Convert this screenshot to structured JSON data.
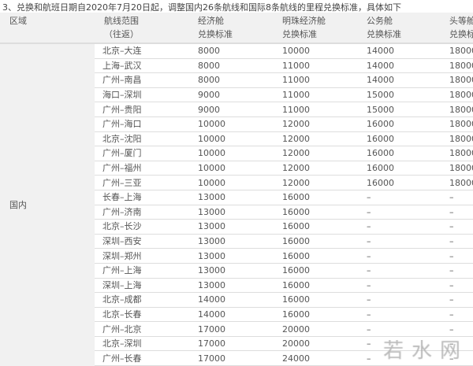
{
  "intro": "3、兑换和航班日期自2020年7月20日起，调整国内26条航线和国际8条航线的里程兑换标准，具体如下",
  "headers": [
    [
      "区域",
      ""
    ],
    [
      "航线范围",
      "（往返）"
    ],
    [
      "经济舱",
      "兑换标准"
    ],
    [
      "明珠经济舱",
      "兑换标准"
    ],
    [
      "公务舱",
      "兑换标准"
    ],
    [
      "头等舱",
      "兑换标准"
    ]
  ],
  "region": "国内",
  "rows": [
    [
      "北京–大连",
      "8000",
      "10000",
      "14000",
      "18000"
    ],
    [
      "上海–武汉",
      "8000",
      "11000",
      "14000",
      "18000"
    ],
    [
      "广州–南昌",
      "8000",
      "11000",
      "14000",
      "18000"
    ],
    [
      "海口–深圳",
      "9000",
      "11000",
      "15000",
      "18000"
    ],
    [
      "广州–贵阳",
      "9000",
      "11000",
      "15000",
      "18000"
    ],
    [
      "广州–海口",
      "10000",
      "12000",
      "16000",
      "18000"
    ],
    [
      "北京–沈阳",
      "10000",
      "12000",
      "16000",
      "18000"
    ],
    [
      "广州–厦门",
      "10000",
      "12000",
      "16000",
      "18000"
    ],
    [
      "广州–福州",
      "10000",
      "12000",
      "16000",
      "18000"
    ],
    [
      "广州–三亚",
      "10000",
      "12000",
      "16000",
      "18000"
    ],
    [
      "长春–上海",
      "13000",
      "16000",
      "–",
      "–"
    ],
    [
      "广州–济南",
      "13000",
      "16000",
      "–",
      "–"
    ],
    [
      "北京–长沙",
      "13000",
      "16000",
      "–",
      "–"
    ],
    [
      "深圳–西安",
      "13000",
      "16000",
      "–",
      "–"
    ],
    [
      "深圳–郑州",
      "13000",
      "16000",
      "–",
      "–"
    ],
    [
      "广州–上海",
      "13000",
      "16000",
      "–",
      "–"
    ],
    [
      "深圳–上海",
      "13000",
      "16000",
      "–",
      "–"
    ],
    [
      "北京–成都",
      "14000",
      "16000",
      "–",
      "–"
    ],
    [
      "北京–长春",
      "14000",
      "16000",
      "–",
      "–"
    ],
    [
      "广州–北京",
      "17000",
      "20000",
      "–",
      "–"
    ],
    [
      "北京–深圳",
      "17000",
      "20000",
      "–",
      "–"
    ],
    [
      "广州–长春",
      "17000",
      "24000",
      "–",
      "–"
    ]
  ],
  "watermark": "若水网"
}
